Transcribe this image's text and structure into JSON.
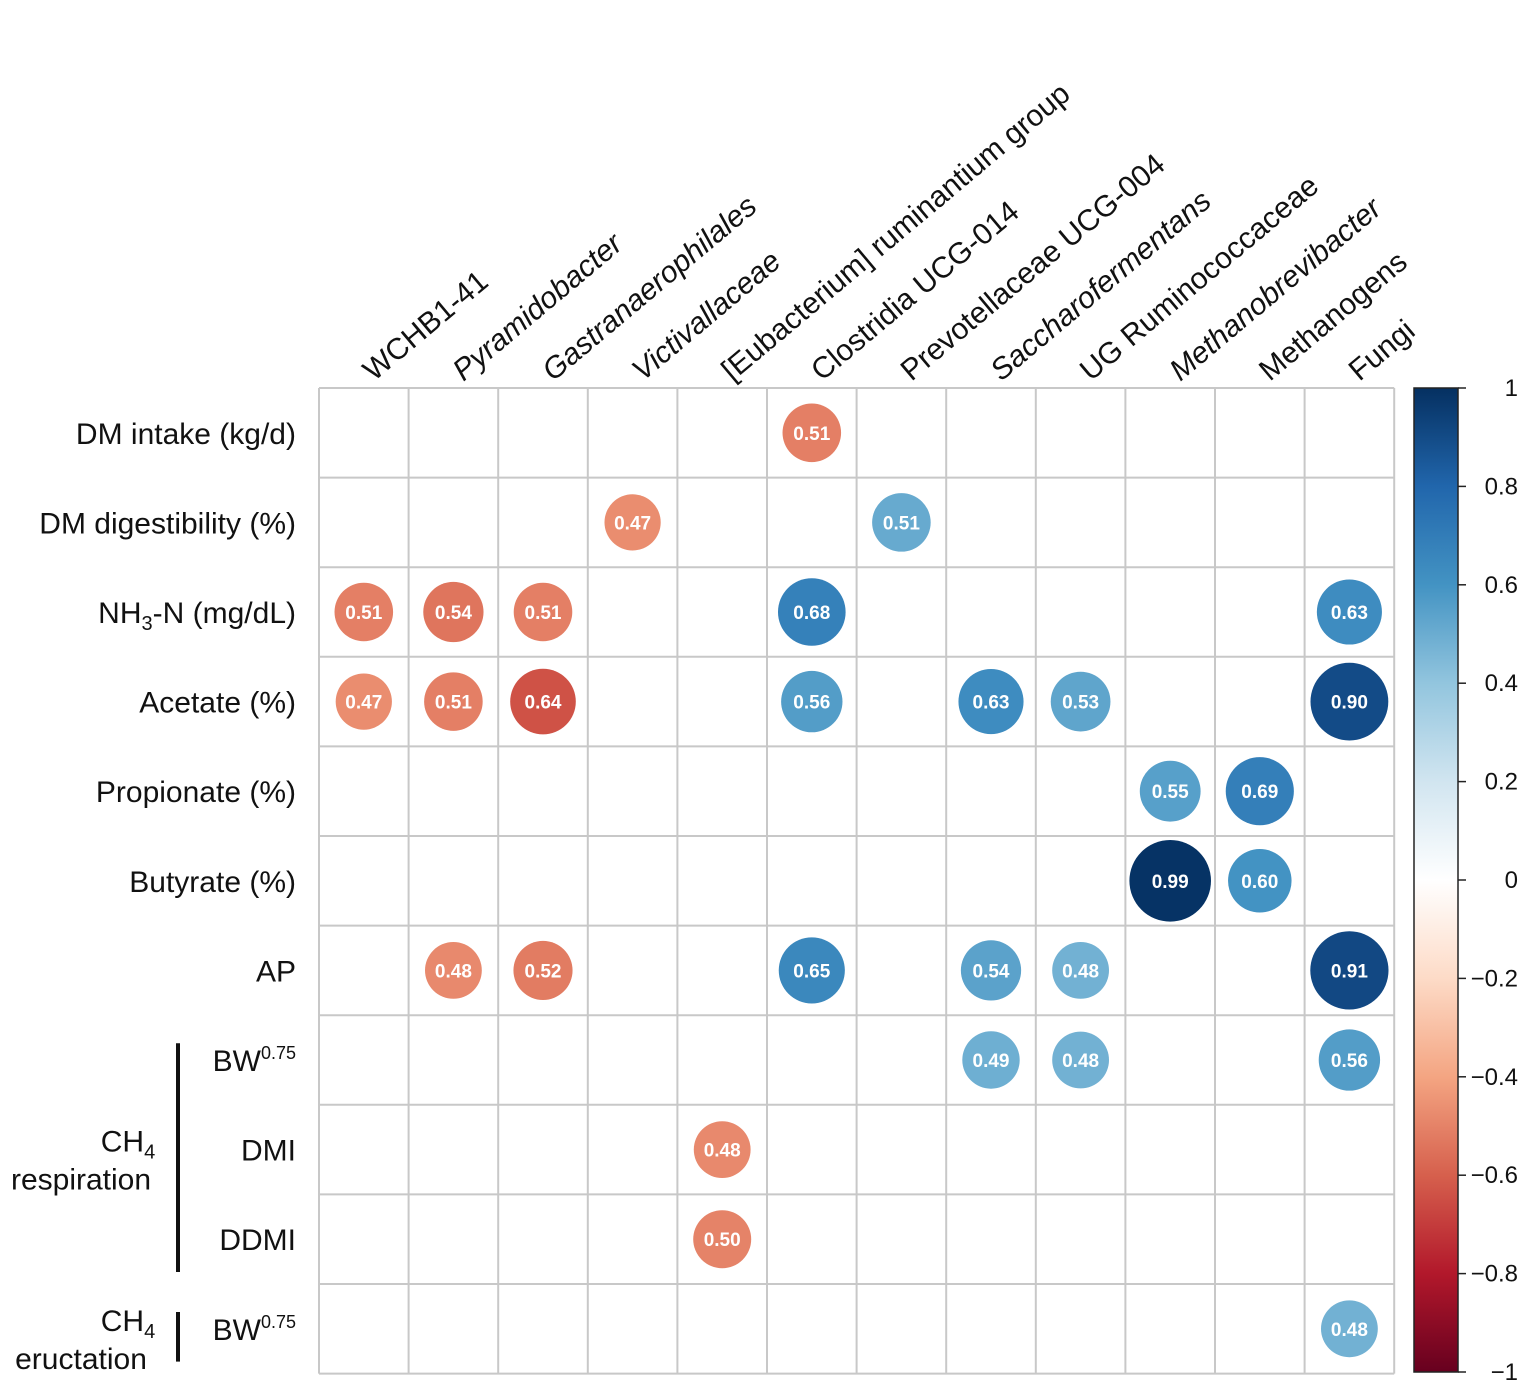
{
  "chart_data": {
    "type": "heatmap",
    "subtype": "correlation-circle-matrix",
    "columns": [
      {
        "label": "WCHB1-41",
        "italic": false
      },
      {
        "label": "Pyramidobacter",
        "italic": true
      },
      {
        "label": "Gastranaerophilales",
        "italic": true
      },
      {
        "label": "Victivallaceae",
        "italic": true
      },
      {
        "label": "[Eubacterium] ruminantium group",
        "italic": false
      },
      {
        "label": "Clostridia UCG-014",
        "italic": false
      },
      {
        "label": "Prevotellaceae UCG-004",
        "italic": false
      },
      {
        "label": "Saccharofermentans",
        "italic": true
      },
      {
        "label": "UG Ruminococcaceae",
        "italic": false
      },
      {
        "label": "Methanobrevibacter",
        "italic": true
      },
      {
        "label": "Methanogens",
        "italic": false
      },
      {
        "label": "Fungi",
        "italic": false
      }
    ],
    "rows": [
      {
        "label": "DM intake (kg/d)"
      },
      {
        "label": "DM digestibility (%)"
      },
      {
        "label": "NH",
        "sub": "3",
        "after": "-N (mg/dL)"
      },
      {
        "label": "Acetate (%)"
      },
      {
        "label": "Propionate (%)"
      },
      {
        "label": "Butyrate (%)"
      },
      {
        "label": "AP"
      },
      {
        "label": "BW",
        "sup": "0.75"
      },
      {
        "label": "DMI"
      },
      {
        "label": "DDMI"
      },
      {
        "label": "BW",
        "sup": "0.75"
      }
    ],
    "row_groups": [
      {
        "line1": "CH",
        "line1_sub": "4",
        "line2": "respiration",
        "rows": [
          7,
          9
        ]
      },
      {
        "line1": "CH",
        "line1_sub": "4",
        "line2": "eructation",
        "rows": [
          10,
          10
        ]
      }
    ],
    "cells": [
      {
        "row": 0,
        "col": 5,
        "value": -0.51,
        "label": "0.51"
      },
      {
        "row": 1,
        "col": 3,
        "value": -0.47,
        "label": "0.47"
      },
      {
        "row": 1,
        "col": 6,
        "value": 0.51,
        "label": "0.51"
      },
      {
        "row": 2,
        "col": 0,
        "value": -0.51,
        "label": "0.51"
      },
      {
        "row": 2,
        "col": 1,
        "value": -0.54,
        "label": "0.54"
      },
      {
        "row": 2,
        "col": 2,
        "value": -0.51,
        "label": "0.51"
      },
      {
        "row": 2,
        "col": 5,
        "value": 0.68,
        "label": "0.68"
      },
      {
        "row": 2,
        "col": 11,
        "value": 0.63,
        "label": "0.63"
      },
      {
        "row": 3,
        "col": 0,
        "value": -0.47,
        "label": "0.47"
      },
      {
        "row": 3,
        "col": 1,
        "value": -0.51,
        "label": "0.51"
      },
      {
        "row": 3,
        "col": 2,
        "value": -0.64,
        "label": "0.64"
      },
      {
        "row": 3,
        "col": 5,
        "value": 0.56,
        "label": "0.56"
      },
      {
        "row": 3,
        "col": 7,
        "value": 0.63,
        "label": "0.63"
      },
      {
        "row": 3,
        "col": 8,
        "value": 0.53,
        "label": "0.53"
      },
      {
        "row": 3,
        "col": 11,
        "value": 0.9,
        "label": "0.90"
      },
      {
        "row": 4,
        "col": 9,
        "value": 0.55,
        "label": "0.55"
      },
      {
        "row": 4,
        "col": 10,
        "value": 0.69,
        "label": "0.69"
      },
      {
        "row": 5,
        "col": 9,
        "value": 0.99,
        "label": "0.99"
      },
      {
        "row": 5,
        "col": 10,
        "value": 0.6,
        "label": "0.60"
      },
      {
        "row": 6,
        "col": 1,
        "value": -0.48,
        "label": "0.48"
      },
      {
        "row": 6,
        "col": 2,
        "value": -0.52,
        "label": "0.52"
      },
      {
        "row": 6,
        "col": 5,
        "value": 0.65,
        "label": "0.65"
      },
      {
        "row": 6,
        "col": 7,
        "value": 0.54,
        "label": "0.54"
      },
      {
        "row": 6,
        "col": 8,
        "value": 0.48,
        "label": "0.48"
      },
      {
        "row": 6,
        "col": 11,
        "value": 0.91,
        "label": "0.91"
      },
      {
        "row": 7,
        "col": 7,
        "value": 0.49,
        "label": "0.49"
      },
      {
        "row": 7,
        "col": 8,
        "value": 0.48,
        "label": "0.48"
      },
      {
        "row": 7,
        "col": 11,
        "value": 0.56,
        "label": "0.56"
      },
      {
        "row": 8,
        "col": 4,
        "value": -0.48,
        "label": "0.48"
      },
      {
        "row": 9,
        "col": 4,
        "value": -0.5,
        "label": "0.50"
      },
      {
        "row": 10,
        "col": 11,
        "value": 0.48,
        "label": "0.48"
      }
    ],
    "colorbar": {
      "range": [
        -1,
        1
      ],
      "ticks": [
        "1",
        "0.8",
        "0.6",
        "0.4",
        "0.2",
        "0",
        "−0.2",
        "−0.4",
        "−0.6",
        "−0.8",
        "−1"
      ],
      "tick_values": [
        1,
        0.8,
        0.6,
        0.4,
        0.2,
        0,
        -0.2,
        -0.4,
        -0.6,
        -0.8,
        -1
      ],
      "palette": [
        "#67001F",
        "#B2182B",
        "#D6604D",
        "#F4A582",
        "#FDDBC7",
        "#FFFFFF",
        "#D1E5F0",
        "#92C5DE",
        "#4393C3",
        "#2166AC",
        "#053061"
      ]
    }
  }
}
